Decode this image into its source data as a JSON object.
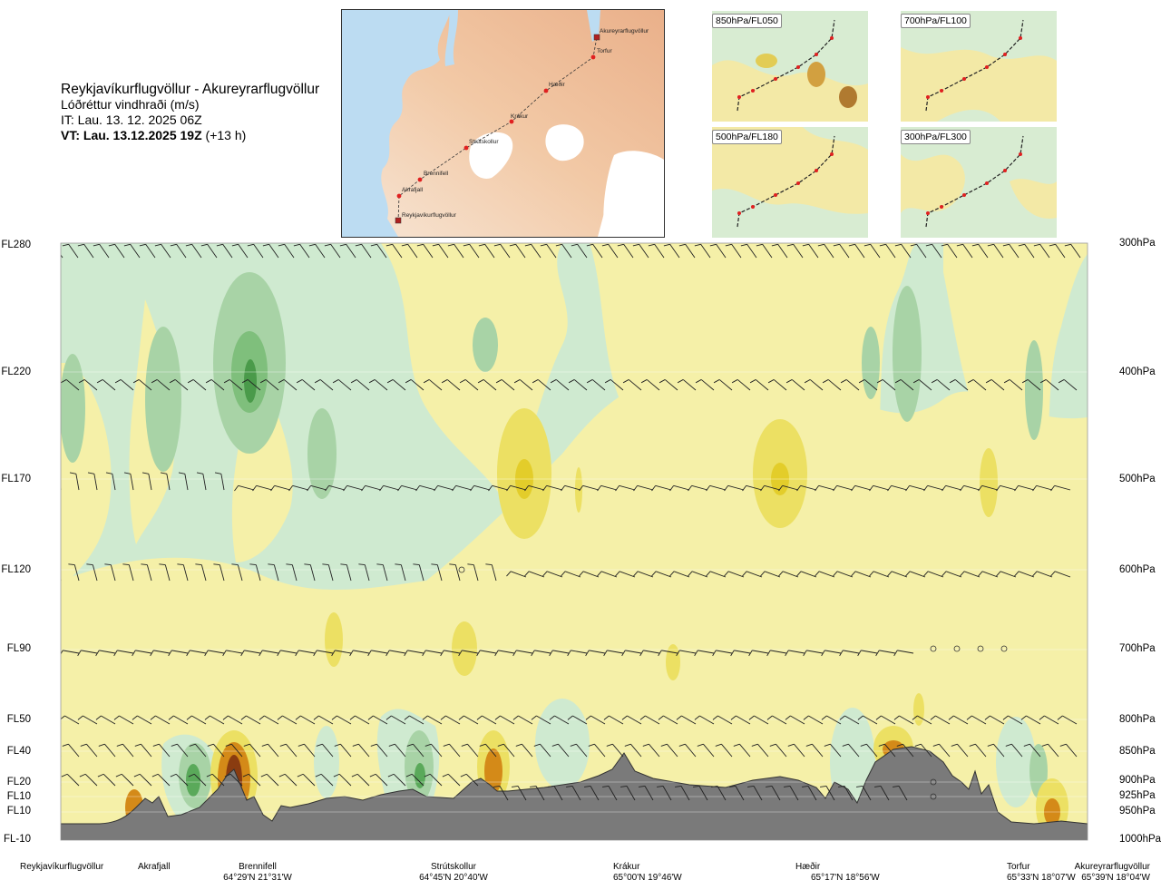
{
  "header": {
    "route": "Reykjavíkurflugvöllur - Akureyrarflugvöllur",
    "parameter": "Lóðréttur vindhraði (m/s)",
    "issue_time": "IT: Lau. 13. 12. 2025 06Z",
    "valid_time_bold": "VT: Lau. 13.12.2025 19Z",
    "valid_time_offset": " (+13 h)"
  },
  "map": {
    "waypoints": [
      "Akureyrarflugvöllur",
      "Torfur",
      "Hæðir",
      "Krákur",
      "Strútskollur",
      "Brennifell",
      "Akrafjall",
      "Reykjavíkurflugvöllur"
    ]
  },
  "mini_maps": [
    {
      "label": "850hPa/FL050"
    },
    {
      "label": "700hPa/FL100"
    },
    {
      "label": "500hPa/FL180"
    },
    {
      "label": "300hPa/FL300"
    }
  ],
  "levels_left": [
    "FL280",
    "FL220",
    "FL170",
    "FL120",
    "FL90",
    "FL50",
    "FL40",
    "FL20",
    "FL10",
    "FL10",
    "FL-10"
  ],
  "levels_right": [
    "300hPa",
    "400hPa",
    "500hPa",
    "600hPa",
    "700hPa",
    "800hPa",
    "850hPa",
    "900hPa",
    "925hPa",
    "950hPa",
    "1000hPa"
  ],
  "bottom_points": [
    {
      "name": "Reykjavíkurflugvöllur",
      "coord": ""
    },
    {
      "name": "Akrafjall",
      "coord": ""
    },
    {
      "name": "Brennifell",
      "coord": "64°29'N 21°31'W"
    },
    {
      "name": "Strútskollur",
      "coord": "64°45'N 20°40'W"
    },
    {
      "name": "Krákur",
      "coord": "65°00'N 19°46'W"
    },
    {
      "name": "Hæðir",
      "coord": "65°17'N 18°56'W"
    },
    {
      "name": "Torfur",
      "coord": "65°33'N 18°07'W"
    },
    {
      "name": "Akureyrarflugvöllur",
      "coord": "65°39'N 18°04'W"
    }
  ],
  "colors": {
    "down_light": "#f5f0a8",
    "down_mid": "#ece063",
    "down_strong": "#e3cd2a",
    "up_light": "#cfead0",
    "up_mid": "#a8d3a6",
    "up_strong": "#5aa95a",
    "terrain": "#7a7a7a",
    "strong_orange": "#d48a18",
    "strong_brown": "#8a3c10"
  }
}
